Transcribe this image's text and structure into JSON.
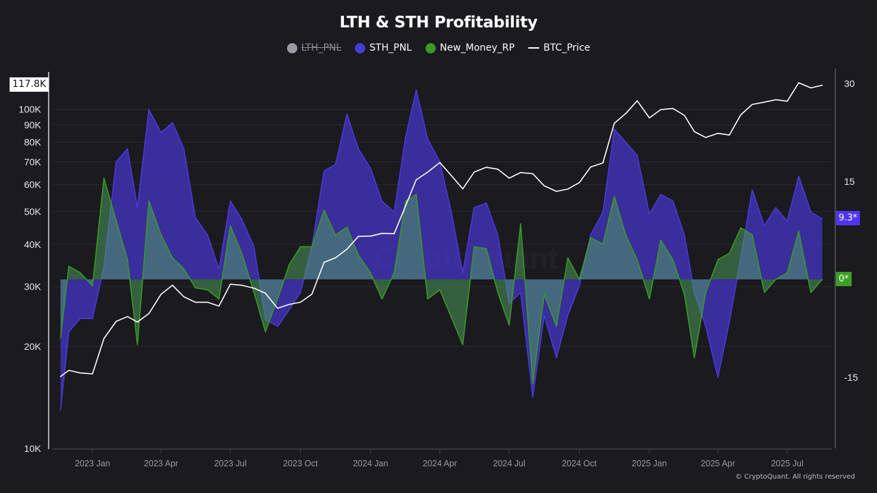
{
  "title": "LTH & STH Profitability",
  "legend": [
    {
      "name": "LTH_PNL",
      "color": "#9a9aa4",
      "hidden": true,
      "marker": "circle"
    },
    {
      "name": "STH_PNL",
      "color": "#4b3ad6",
      "hidden": false,
      "marker": "circle"
    },
    {
      "name": "New_Money_RP",
      "color": "#3a9a24",
      "hidden": false,
      "marker": "circle"
    },
    {
      "name": "BTC_Price",
      "color": "#ffffff",
      "hidden": false,
      "marker": "line"
    }
  ],
  "footer": "© CryptoQuant. All rights reserved",
  "watermark": "CryptoQuant",
  "chart_data": {
    "type": "area",
    "title": "LTH & STH Profitability",
    "grid": true,
    "legend_position": "top-center",
    "x_ticks": [
      "2023 Jan",
      "2023 Apr",
      "2023 Jul",
      "2023 Oct",
      "2024 Jan",
      "2024 Apr",
      "2024 Jul",
      "2024 Oct",
      "2025 Jan",
      "2025 Apr",
      "2025 Jul"
    ],
    "x_tick_dates": [
      "2023-01-01",
      "2023-04-01",
      "2023-07-01",
      "2023-10-01",
      "2024-01-01",
      "2024-04-01",
      "2024-07-01",
      "2024-10-01",
      "2025-01-01",
      "2025-04-01",
      "2025-07-01"
    ],
    "left_axis": {
      "scale": "log",
      "range": [
        10000,
        132000
      ],
      "ticks": [
        10000,
        20000,
        30000,
        40000,
        50000,
        60000,
        70000,
        80000,
        90000,
        100000
      ],
      "tick_labels": [
        "10K",
        "20K",
        "30K",
        "40K",
        "50K",
        "60K",
        "70K",
        "80K",
        "90K",
        "100K"
      ],
      "current_label": "117.8K"
    },
    "right_axis": {
      "scale": "linear",
      "range": [
        -25.9,
        32.3
      ],
      "ticks": [
        30,
        15,
        -15
      ],
      "tick_labels": [
        "30",
        "15",
        "-15"
      ]
    },
    "x": [
      "2022-11-20",
      "2022-12-01",
      "2022-12-16",
      "2023-01-01",
      "2023-01-16",
      "2023-02-01",
      "2023-02-16",
      "2023-03-01",
      "2023-03-16",
      "2023-04-01",
      "2023-04-16",
      "2023-05-01",
      "2023-05-16",
      "2023-06-01",
      "2023-06-16",
      "2023-07-01",
      "2023-07-16",
      "2023-08-01",
      "2023-08-16",
      "2023-09-01",
      "2023-09-16",
      "2023-10-01",
      "2023-10-16",
      "2023-11-01",
      "2023-11-16",
      "2023-12-01",
      "2023-12-16",
      "2024-01-01",
      "2024-01-16",
      "2024-02-01",
      "2024-02-16",
      "2024-03-01",
      "2024-03-16",
      "2024-04-01",
      "2024-04-16",
      "2024-05-01",
      "2024-05-16",
      "2024-06-01",
      "2024-06-16",
      "2024-07-01",
      "2024-07-16",
      "2024-08-01",
      "2024-08-16",
      "2024-09-01",
      "2024-09-16",
      "2024-10-01",
      "2024-10-16",
      "2024-11-01",
      "2024-11-16",
      "2024-12-01",
      "2024-12-16",
      "2025-01-01",
      "2025-01-16",
      "2025-02-01",
      "2025-02-16",
      "2025-03-01",
      "2025-03-16",
      "2025-04-01",
      "2025-04-16",
      "2025-05-01",
      "2025-05-16",
      "2025-06-01",
      "2025-06-16",
      "2025-07-01",
      "2025-07-16",
      "2025-08-01",
      "2025-08-16"
    ],
    "series": [
      {
        "name": "STH_PNL",
        "axis": "right",
        "color": "#4b3ad6",
        "current_label": "9.3*",
        "values": [
          -20,
          -8,
          -6,
          -6,
          2,
          18,
          20,
          11,
          26,
          22.5,
          24,
          20,
          9.5,
          6.8,
          1.6,
          12,
          9.2,
          5,
          -6.2,
          -7.2,
          -4.7,
          -2,
          5,
          16.6,
          17.6,
          25.3,
          20,
          17,
          12,
          10.3,
          21.8,
          29,
          21.5,
          18,
          10.3,
          1,
          11,
          11.7,
          6.8,
          -3.7,
          -2,
          -18,
          -5.5,
          -12,
          -5.5,
          -1,
          6.8,
          10.3,
          23,
          21,
          19,
          10,
          13,
          12,
          6.8,
          -2,
          -7.2,
          -15,
          -6.5,
          3.3,
          13.7,
          8.2,
          11,
          8.9,
          15.8,
          10.3,
          9.3
        ]
      },
      {
        "name": "New_Money_RP",
        "axis": "right",
        "color": "#3a9a24",
        "current_label": "0*",
        "values": [
          -9,
          2,
          1,
          -1,
          15.5,
          9,
          3,
          -10,
          12,
          6.8,
          3.3,
          1.6,
          -1.3,
          -1.6,
          -3,
          8.2,
          4,
          -2,
          -8,
          -3,
          2.2,
          5,
          5,
          10.6,
          6.8,
          8,
          3.7,
          1,
          -3,
          1,
          12,
          13,
          -3,
          -1.6,
          -5.8,
          -10,
          5,
          4.7,
          -2,
          -7,
          8.5,
          -16,
          -2.3,
          -7.2,
          3.3,
          0,
          6.4,
          5.4,
          12.7,
          6.8,
          3,
          -3,
          6,
          3,
          -2.3,
          -12,
          -2,
          3,
          4,
          7.9,
          6.8,
          -2,
          0,
          1,
          7.4,
          -2,
          0
        ]
      },
      {
        "name": "BTC_Price",
        "axis": "left",
        "color": "#ffffff",
        "current_label": "117.8K",
        "values": [
          16300,
          17000,
          16700,
          16600,
          21100,
          23700,
          24500,
          23600,
          25000,
          28500,
          30300,
          28000,
          27000,
          27000,
          26300,
          30500,
          30300,
          29700,
          28700,
          25900,
          26600,
          27000,
          28500,
          35400,
          36500,
          38700,
          42200,
          42300,
          43100,
          43000,
          52000,
          62000,
          65300,
          69700,
          63800,
          58300,
          65300,
          67500,
          66600,
          62700,
          65100,
          64600,
          59500,
          57300,
          58200,
          60800,
          67600,
          69500,
          91000,
          97200,
          106000,
          94400,
          99800,
          100600,
          96000,
          86000,
          82600,
          85000,
          84000,
          96400,
          103400,
          105000,
          106800,
          105700,
          119800,
          115700,
          117800
        ]
      }
    ]
  }
}
